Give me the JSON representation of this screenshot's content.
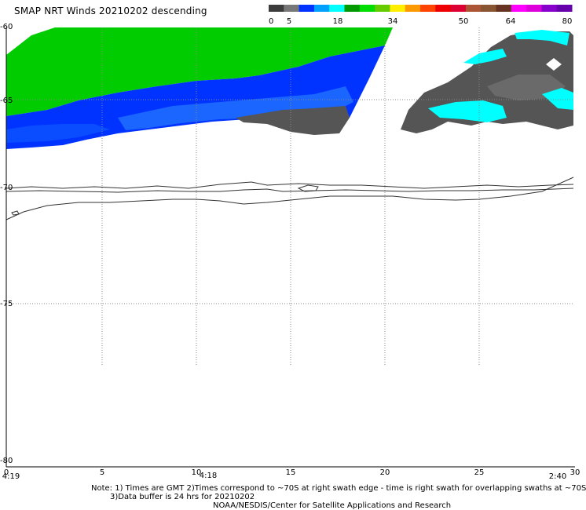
{
  "title": "SMAP NRT Winds  20210202 descending",
  "colorbar": {
    "labels": [
      "0",
      "5",
      "18",
      "34",
      "50",
      "64",
      "80"
    ],
    "segments": [
      {
        "color": "#3c3c3c"
      },
      {
        "color": "#777777"
      },
      {
        "color": "#0033ff"
      },
      {
        "color": "#00a0ff"
      },
      {
        "color": "#00ffff"
      },
      {
        "color": "#009900"
      },
      {
        "color": "#00dd00"
      },
      {
        "color": "#66cc00"
      },
      {
        "color": "#ffee00"
      },
      {
        "color": "#ff9900"
      },
      {
        "color": "#ff4400"
      },
      {
        "color": "#ee0000"
      },
      {
        "color": "#dd0033"
      },
      {
        "color": "#aa5533"
      },
      {
        "color": "#885533"
      },
      {
        "color": "#663322"
      },
      {
        "color": "#ff00ff"
      },
      {
        "color": "#dd00dd"
      },
      {
        "color": "#8800cc"
      },
      {
        "color": "#6600aa"
      }
    ]
  },
  "axes": {
    "y_ticks": [
      "-60",
      "-65",
      "-70",
      "-75",
      "-80"
    ],
    "x_ticks": [
      "0",
      "5",
      "10",
      "15",
      "20",
      "25",
      "30"
    ],
    "time_labels": [
      "4:19",
      "4:18",
      "2:40"
    ]
  },
  "notes": {
    "line1": "Note: 1) Times are GMT 2)Times correspond to ~70S at right swath edge - time is right swath for overlapping swaths at ~70S",
    "line2": "3)Data buffer is 24 hrs for 20210202",
    "credit": "NOAA/NESDIS/Center for Satellite Applications and Research"
  },
  "colors": {
    "swath_green": "#00cc00",
    "swath_blue": "#0033ff",
    "swath_lightblue": "#00a0ff",
    "cyan": "#00ffff",
    "dark_gray": "#4a4a4a",
    "coast": "#333333"
  }
}
